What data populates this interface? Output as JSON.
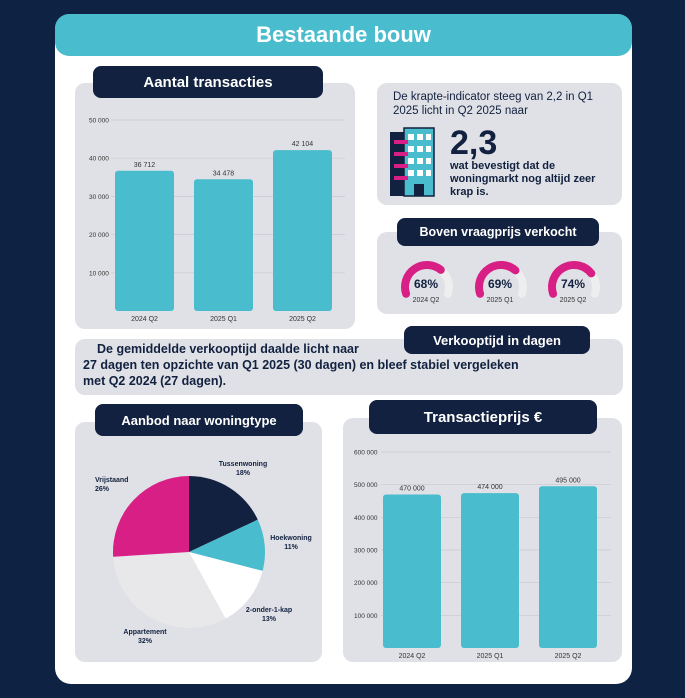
{
  "title": "Bestaande bouw",
  "colors": {
    "background": "#0e2244",
    "accent": "#49bccd",
    "navy": "#12213f",
    "magenta": "#d81f85",
    "panel": "#dfe1e6"
  },
  "transactions": {
    "heading": "Aantal transacties",
    "chart_data": {
      "type": "bar",
      "categories": [
        "2024 Q2",
        "2025 Q1",
        "2025 Q2"
      ],
      "values": [
        36712,
        34478,
        42104
      ],
      "value_labels": [
        "36 712",
        "34 478",
        "42 104"
      ],
      "yticks": [
        "10 000",
        "20 000",
        "30 000",
        "40 000",
        "50 000"
      ],
      "ytick_values": [
        10000,
        20000,
        30000,
        40000,
        50000
      ],
      "ylim": [
        0,
        50000
      ],
      "title": "",
      "xlabel": "",
      "ylabel": ""
    }
  },
  "krapte": {
    "text": "De krapte-indicator steeg van 2,2 in Q1 2025 licht in Q2 2025 naar",
    "value": "2,3",
    "subtext": "wat bevestigt dat de woningmarkt nog altijd zeer krap is.",
    "icon": "apartment-building-icon"
  },
  "boven_vraagprijs": {
    "heading": "Boven vraagprijs verkocht",
    "gauges": [
      {
        "value_label": "68%",
        "value": 0.68,
        "period": "2024 Q2"
      },
      {
        "value_label": "69%",
        "value": 0.69,
        "period": "2025 Q1"
      },
      {
        "value_label": "74%",
        "value": 0.74,
        "period": "2025 Q2"
      }
    ]
  },
  "verkooptijd": {
    "heading": "Verkooptijd in dagen",
    "line1": "De gemiddelde verkooptijd daalde licht naar",
    "line2": "27 dagen ten opzichte van Q1 2025 (30 dagen) en bleef stabiel vergeleken",
    "line3": "met Q2 2024 (27 dagen)."
  },
  "aanbod": {
    "heading": "Aanbod naar woningtype",
    "chart_data": {
      "type": "pie",
      "slices": [
        {
          "label": "Tussenwoning",
          "pct_label": "18%",
          "value": 18,
          "color": "#12213f"
        },
        {
          "label": "Hoekwoning",
          "pct_label": "11%",
          "value": 11,
          "color": "#49bccd"
        },
        {
          "label": "2-onder-1-kap",
          "pct_label": "13%",
          "value": 13,
          "color": "#ffffff"
        },
        {
          "label": "Appartement",
          "pct_label": "32%",
          "value": 32,
          "color": "#e8e8ea"
        },
        {
          "label": "Vrijstaand",
          "pct_label": "26%",
          "value": 26,
          "color": "#d81f85"
        }
      ],
      "title": ""
    }
  },
  "transactieprijs": {
    "heading": "Transactieprijs €",
    "chart_data": {
      "type": "bar",
      "categories": [
        "2024 Q2",
        "2025 Q1",
        "2025 Q2"
      ],
      "values": [
        470000,
        474000,
        495000
      ],
      "value_labels": [
        "470 000",
        "474 000",
        "495 000"
      ],
      "yticks": [
        "100 000",
        "200 000",
        "300 000",
        "400 000",
        "500 000",
        "600 000"
      ],
      "ytick_values": [
        100000,
        200000,
        300000,
        400000,
        500000,
        600000
      ],
      "ylim": [
        0,
        600000
      ],
      "title": "",
      "xlabel": "",
      "ylabel": ""
    }
  }
}
